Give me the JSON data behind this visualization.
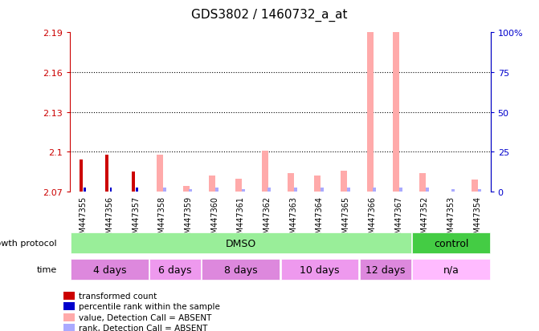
{
  "title": "GDS3802 / 1460732_a_at",
  "samples": [
    "GSM447355",
    "GSM447356",
    "GSM447357",
    "GSM447358",
    "GSM447359",
    "GSM447360",
    "GSM447361",
    "GSM447362",
    "GSM447363",
    "GSM447364",
    "GSM447365",
    "GSM447366",
    "GSM447367",
    "GSM447352",
    "GSM447353",
    "GSM447354"
  ],
  "y_min": 2.07,
  "y_max": 2.19,
  "y_ticks": [
    2.07,
    2.1,
    2.13,
    2.16,
    2.19
  ],
  "y_tick_labels": [
    "2.07",
    "2.1",
    "2.13",
    "2.16",
    "2.19"
  ],
  "y2_ticks": [
    0,
    25,
    50,
    75,
    100
  ],
  "y2_tick_labels": [
    "0",
    "25",
    "50",
    "75",
    "100%"
  ],
  "dotted_lines": [
    2.1,
    2.13,
    2.16
  ],
  "bar_width": 0.35,
  "transformed_count": [
    2.094,
    2.098,
    2.085,
    2.07,
    2.07,
    2.07,
    2.07,
    2.07,
    2.07,
    2.07,
    2.07,
    2.07,
    2.07,
    2.07,
    2.07,
    2.07
  ],
  "percentile_rank": [
    2.073,
    2.073,
    2.073,
    2.07,
    2.07,
    2.07,
    2.07,
    2.07,
    2.07,
    2.07,
    2.07,
    2.07,
    2.07,
    2.07,
    2.07,
    2.07
  ],
  "absent_value": [
    2.07,
    2.07,
    2.07,
    2.098,
    2.074,
    2.082,
    2.08,
    2.101,
    2.084,
    2.082,
    2.086,
    2.195,
    2.195,
    2.084,
    2.07,
    2.079
  ],
  "absent_rank": [
    2.07,
    2.07,
    2.07,
    2.073,
    2.072,
    2.073,
    2.072,
    2.073,
    2.073,
    2.073,
    2.073,
    2.073,
    2.073,
    2.073,
    2.072,
    2.072
  ],
  "present_mask": [
    true,
    true,
    true,
    false,
    false,
    false,
    false,
    false,
    false,
    false,
    false,
    false,
    false,
    false,
    false,
    false
  ],
  "color_red": "#cc0000",
  "color_blue": "#0000cc",
  "color_pink": "#ffaaaa",
  "color_lightblue": "#aaaaff",
  "color_left_axis": "#cc0000",
  "color_right_axis": "#0000cc",
  "groups": [
    {
      "label": "DMSO",
      "start": 0,
      "end": 12,
      "color": "#99ee99"
    },
    {
      "label": "control",
      "start": 13,
      "end": 15,
      "color": "#44cc44"
    }
  ],
  "time_groups": [
    {
      "label": "4 days",
      "start": 0,
      "end": 2,
      "color": "#dd88dd"
    },
    {
      "label": "6 days",
      "start": 3,
      "end": 4,
      "color": "#ee99ee"
    },
    {
      "label": "8 days",
      "start": 5,
      "end": 7,
      "color": "#dd88dd"
    },
    {
      "label": "10 days",
      "start": 8,
      "end": 10,
      "color": "#ee99ee"
    },
    {
      "label": "12 days",
      "start": 11,
      "end": 12,
      "color": "#dd88dd"
    },
    {
      "label": "n/a",
      "start": 13,
      "end": 15,
      "color": "#ffbbff"
    }
  ],
  "legend_items": [
    {
      "label": "transformed count",
      "color": "#cc0000"
    },
    {
      "label": "percentile rank within the sample",
      "color": "#0000cc"
    },
    {
      "label": "value, Detection Call = ABSENT",
      "color": "#ffaaaa"
    },
    {
      "label": "rank, Detection Call = ABSENT",
      "color": "#aaaaff"
    }
  ],
  "bg_color": "#ffffff"
}
